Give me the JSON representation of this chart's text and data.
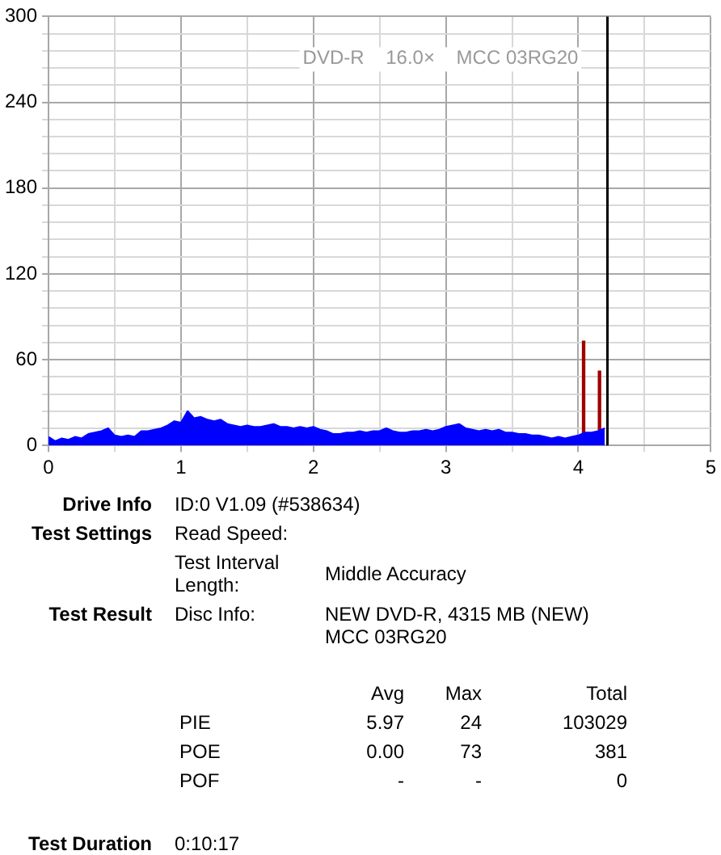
{
  "chart_data": [
    {
      "type": "area",
      "x": [
        0,
        0.05,
        0.1,
        0.15,
        0.2,
        0.25,
        0.3,
        0.35,
        0.4,
        0.45,
        0.5,
        0.55,
        0.6,
        0.65,
        0.7,
        0.75,
        0.8,
        0.85,
        0.9,
        0.95,
        1,
        1.05,
        1.1,
        1.15,
        1.2,
        1.25,
        1.3,
        1.35,
        1.4,
        1.45,
        1.5,
        1.55,
        1.6,
        1.65,
        1.7,
        1.75,
        1.8,
        1.85,
        1.9,
        1.95,
        2,
        2.05,
        2.1,
        2.15,
        2.2,
        2.25,
        2.3,
        2.35,
        2.4,
        2.45,
        2.5,
        2.55,
        2.6,
        2.65,
        2.7,
        2.75,
        2.8,
        2.85,
        2.9,
        2.95,
        3,
        3.05,
        3.1,
        3.15,
        3.2,
        3.25,
        3.3,
        3.35,
        3.4,
        3.45,
        3.5,
        3.55,
        3.6,
        3.65,
        3.7,
        3.75,
        3.8,
        3.85,
        3.9,
        3.95,
        4,
        4.05,
        4.1,
        4.15,
        4.2
      ],
      "series": [
        {
          "color": "#0000ff",
          "values": [
            6,
            3,
            5,
            4,
            6,
            5,
            8,
            9,
            10,
            12,
            7,
            6,
            7,
            6,
            10,
            10,
            11,
            12,
            14,
            17,
            16,
            24,
            19,
            20,
            18,
            17,
            18,
            15,
            14,
            13,
            14,
            13,
            13,
            14,
            15,
            13,
            13,
            12,
            13,
            12,
            13,
            11,
            10,
            8,
            8,
            9,
            9,
            10,
            9,
            10,
            10,
            12,
            10,
            9,
            9,
            10,
            10,
            11,
            10,
            11,
            13,
            14,
            15,
            12,
            11,
            10,
            11,
            10,
            11,
            9,
            9,
            8,
            8,
            7,
            7,
            6,
            5,
            6,
            5,
            6,
            7,
            9,
            9,
            10,
            12
          ]
        },
        {
          "type": "bar",
          "x": [
            4.04,
            4.16
          ],
          "color": "#a00000",
          "values": [
            73,
            52
          ]
        }
      ],
      "xlim": [
        0,
        5
      ],
      "xticks": [
        0,
        {
          "value": 0.5,
          "label": null
        },
        1,
        {
          "value": 1.5,
          "label": null
        },
        2,
        {
          "value": 2.5,
          "label": null
        },
        3,
        {
          "value": 3.5,
          "label": null
        },
        4,
        {
          "value": 4.5,
          "label": null
        },
        5
      ],
      "ylim": [
        0,
        300
      ],
      "yticks": [
        0,
        {
          "value": 12,
          "label": null
        },
        {
          "value": 24,
          "label": null
        },
        {
          "value": 36,
          "label": null
        },
        {
          "value": 48,
          "label": null
        },
        60,
        {
          "value": 72,
          "label": null
        },
        {
          "value": 84,
          "label": null
        },
        {
          "value": 96,
          "label": null
        },
        {
          "value": 108,
          "label": null
        },
        120,
        {
          "value": 132,
          "label": null
        },
        {
          "value": 144,
          "label": null
        },
        {
          "value": 156,
          "label": null
        },
        {
          "value": 168,
          "label": null
        },
        180,
        {
          "value": 192,
          "label": null
        },
        {
          "value": 204,
          "label": null
        },
        {
          "value": 216,
          "label": null
        },
        {
          "value": 228,
          "label": null
        },
        240,
        {
          "value": 252,
          "label": null
        },
        {
          "value": 264,
          "label": null
        },
        {
          "value": 276,
          "label": null
        },
        {
          "value": 288,
          "label": null
        },
        300
      ],
      "grid": true,
      "ref_lines": [
        {
          "axis": "x",
          "value": 4.22,
          "color": "#000000"
        }
      ],
      "annotations": [
        "DVD-R    16.0×    MCC 03RG20"
      ]
    },
    {
      "type": "other",
      "annotations": [
        "Drive Info",
        "ID:0 V1.09 (#538634)",
        "Test Settings",
        "Read Speed:",
        "Test Interval Length:",
        "Middle Accuracy",
        "Test Result",
        "Disc Info:",
        "NEW DVD-R, 4315 MB (NEW)",
        "MCC 03RG20",
        "Avg",
        "Max",
        "Total",
        "PIE",
        "5.97",
        "24",
        "103029",
        "POE",
        "0.00",
        "73",
        "381",
        "POF",
        "-",
        "-",
        "0",
        "Test Duration",
        "0:10:17"
      ]
    }
  ]
}
